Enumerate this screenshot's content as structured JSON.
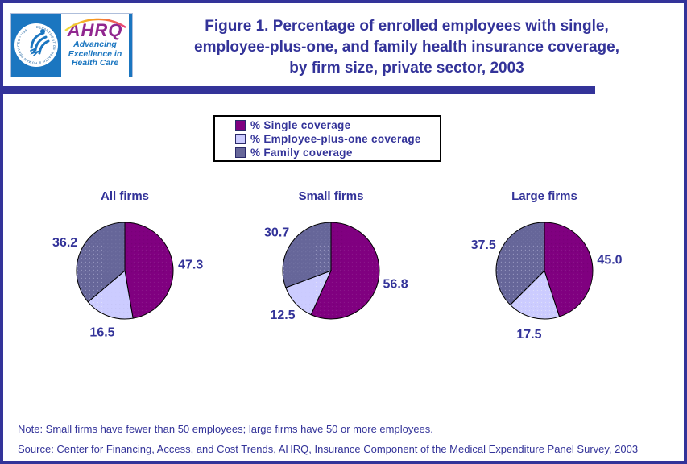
{
  "page": {
    "background": "#FFFFFF",
    "border_color": "#333399"
  },
  "header": {
    "logo": {
      "hhs_seal_ring_text": "DEPARTMENT OF HEALTH & HUMAN SERVICES • USA",
      "ahrq_acronym": "AHRQ",
      "ahrq_tagline": [
        "Advancing",
        "Excellence in",
        "Health Care"
      ]
    },
    "title_lines": [
      "Figure 1. Percentage of enrolled employees with single,",
      "employee-plus-one, and family health insurance coverage,",
      "by firm size, private sector, 2003"
    ]
  },
  "legend": {
    "position": "top-center",
    "items": [
      {
        "label": "% Single coverage",
        "color": "#800080"
      },
      {
        "label": "% Employee-plus-one coverage",
        "color": "#CCCCFF"
      },
      {
        "label": "% Family coverage",
        "color": "#666699"
      }
    ]
  },
  "chart_data": [
    {
      "type": "pie",
      "title": "All firms",
      "categories": [
        "% Single coverage",
        "% Employee-plus-one coverage",
        "% Family coverage"
      ],
      "values": [
        47.3,
        16.5,
        36.2
      ],
      "colors": [
        "#800080",
        "#CCCCFF",
        "#666699"
      ],
      "start_angle_deg": 0,
      "direction": "clockwise",
      "label_position": "outside",
      "label_format": "one-decimal"
    },
    {
      "type": "pie",
      "title": "Small firms",
      "categories": [
        "% Single coverage",
        "% Employee-plus-one coverage",
        "% Family coverage"
      ],
      "values": [
        56.8,
        12.5,
        30.7
      ],
      "colors": [
        "#800080",
        "#CCCCFF",
        "#666699"
      ],
      "start_angle_deg": 0,
      "direction": "clockwise",
      "label_position": "outside",
      "label_format": "one-decimal"
    },
    {
      "type": "pie",
      "title": "Large firms",
      "categories": [
        "% Single coverage",
        "% Employee-plus-one coverage",
        "% Family coverage"
      ],
      "values": [
        45.0,
        17.5,
        37.5
      ],
      "colors": [
        "#800080",
        "#CCCCFF",
        "#666699"
      ],
      "start_angle_deg": 0,
      "direction": "clockwise",
      "label_position": "outside",
      "label_format": "one-decimal"
    }
  ],
  "footnotes": {
    "note": "Note: Small firms have fewer than 50 employees; large firms have 50 or more employees.",
    "source": "Source: Center for Financing, Access, and Cost Trends, AHRQ, Insurance Component of the Medical Expenditure Panel Survey, 2003"
  },
  "colors": {
    "text_navy": "#333399",
    "divider": "#333399",
    "hhs_blue": "#1B76C0",
    "ahrq_purple": "#91278F",
    "pie_outline": "#000000"
  }
}
